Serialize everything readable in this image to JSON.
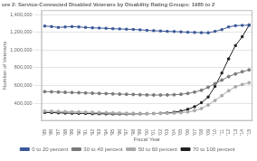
{
  "chart_data": {
    "type": "line",
    "title": "ure 2: Service-Connected Disabled Veterans by Disability Rating Groups: 1985 to 2",
    "xlabel": "Fiscal Year",
    "ylabel": "Number of Veterans",
    "categories": [
      "'85",
      "'86",
      "'87",
      "'88",
      "'89",
      "'90",
      "'91",
      "'92",
      "'93",
      "'94",
      "'95",
      "'96",
      "'97",
      "'98",
      "'99",
      "'00",
      "'01",
      "'02",
      "'03",
      "'04",
      "'05",
      "'06",
      "'07",
      "'08",
      "'09",
      "'10",
      "'11",
      "'12",
      "'13",
      "'14",
      "'15"
    ],
    "series": [
      {
        "name": "0 to 20 percent",
        "color": "#3B5998",
        "marker": "square",
        "values": [
          1270000,
          1265000,
          1255000,
          1260000,
          1265000,
          1260000,
          1255000,
          1250000,
          1248000,
          1245000,
          1240000,
          1238000,
          1235000,
          1232000,
          1228000,
          1222000,
          1218000,
          1215000,
          1210000,
          1208000,
          1205000,
          1200000,
          1198000,
          1196000,
          1195000,
          1210000,
          1230000,
          1260000,
          1275000,
          1278000,
          1280000
        ]
      },
      {
        "name": "30 to 40 percent",
        "color": "#7A7A7A",
        "marker": "circle",
        "values": [
          530000,
          528000,
          525000,
          522000,
          520000,
          518000,
          515000,
          512000,
          510000,
          508000,
          505000,
          502000,
          500000,
          498000,
          495000,
          493000,
          492000,
          492000,
          493000,
          495000,
          500000,
          510000,
          525000,
          545000,
          580000,
          620000,
          660000,
          700000,
          730000,
          755000,
          775000
        ]
      },
      {
        "name": "50 to 60 percent",
        "color": "#AAAAAA",
        "marker": "circle",
        "values": [
          310000,
          308000,
          306000,
          304000,
          302000,
          300000,
          298000,
          296000,
          294000,
          292000,
          290000,
          288000,
          286000,
          285000,
          284000,
          283000,
          283000,
          284000,
          285000,
          288000,
          293000,
          300000,
          315000,
          340000,
          380000,
          430000,
          485000,
          540000,
          585000,
          610000,
          630000
        ]
      },
      {
        "name": "70 to 100 percent",
        "color": "#222222",
        "marker": "square",
        "values": [
          295000,
          293000,
          290000,
          288000,
          286000,
          285000,
          283000,
          281000,
          280000,
          279000,
          278000,
          278000,
          278000,
          279000,
          280000,
          281000,
          283000,
          285000,
          290000,
          298000,
          310000,
          330000,
          360000,
          405000,
          470000,
          590000,
          740000,
          900000,
          1050000,
          1150000,
          1280000
        ]
      }
    ],
    "ylim": [
      200000,
      1450000
    ],
    "yticks": [
      {
        "value": 400000,
        "label": "400,000"
      },
      {
        "value": 600000,
        "label": "600,000"
      },
      {
        "value": 800000,
        "label": "800,000"
      },
      {
        "value": 1000000,
        "label": "1,000,000"
      },
      {
        "value": 1200000,
        "label": "1,200,000"
      },
      {
        "value": 1400000,
        "label": "1,400,000"
      }
    ],
    "grid": "y",
    "legend": "bottom"
  }
}
